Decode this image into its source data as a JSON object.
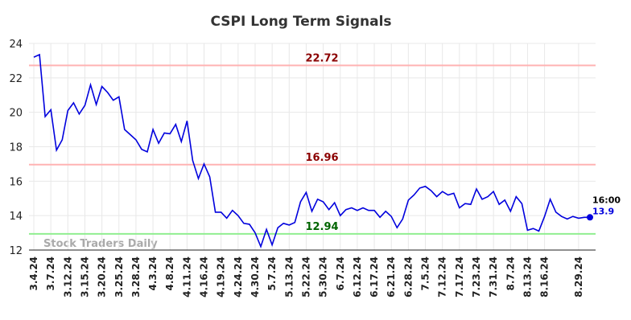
{
  "chart_data": {
    "type": "line",
    "title": "CSPI Long Term Signals",
    "watermark": "Stock Traders Daily",
    "last_label": "16:00",
    "categories": [
      "3.4.24",
      null,
      null,
      "3.7.24",
      null,
      null,
      "3.12.24",
      null,
      null,
      "3.15.24",
      null,
      null,
      "3.20.24",
      null,
      null,
      "3.25.24",
      null,
      null,
      "3.28.24",
      null,
      null,
      "4.3.24",
      null,
      null,
      "4.8.24",
      null,
      null,
      "4.11.24",
      null,
      null,
      "4.16.24",
      null,
      null,
      "4.19.24",
      null,
      null,
      "4.24.24",
      null,
      null,
      "4.30.24",
      null,
      null,
      "5.7.24",
      null,
      null,
      "5.13.24",
      null,
      null,
      "5.22.24",
      null,
      null,
      "5.30.24",
      null,
      null,
      "6.7.24",
      null,
      null,
      "6.12.24",
      null,
      null,
      "6.17.24",
      null,
      null,
      "6.21.24",
      null,
      null,
      "6.28.24",
      null,
      null,
      "7.5.24",
      null,
      null,
      "7.12.24",
      null,
      null,
      "7.17.24",
      null,
      null,
      "7.23.24",
      null,
      null,
      "7.31.24",
      null,
      null,
      "8.7.24",
      null,
      null,
      "8.13.24",
      null,
      null,
      "8.16.24",
      null,
      null,
      null,
      null,
      null,
      "8.29.24",
      null,
      null
    ],
    "values": [
      23.2,
      23.35,
      19.75,
      20.15,
      17.8,
      18.4,
      20.1,
      20.55,
      19.9,
      20.4,
      21.6,
      20.45,
      21.5,
      21.15,
      20.7,
      20.9,
      19.0,
      18.7,
      18.4,
      17.85,
      17.7,
      19.0,
      18.2,
      18.8,
      18.75,
      19.3,
      18.3,
      19.5,
      17.2,
      16.15,
      17.0,
      16.25,
      14.2,
      14.2,
      13.85,
      14.3,
      14.0,
      13.55,
      13.5,
      13.0,
      12.2,
      13.2,
      12.3,
      13.3,
      13.55,
      13.45,
      13.6,
      14.8,
      15.35,
      14.25,
      14.95,
      14.8,
      14.35,
      14.75,
      14.0,
      14.35,
      14.45,
      14.3,
      14.45,
      14.3,
      14.3,
      13.9,
      14.25,
      13.95,
      13.3,
      13.8,
      14.9,
      15.2,
      15.6,
      15.7,
      15.45,
      15.1,
      15.4,
      15.2,
      15.3,
      14.45,
      14.7,
      14.65,
      15.55,
      14.95,
      15.1,
      15.4,
      14.65,
      14.9,
      14.25,
      15.1,
      14.7,
      13.15,
      13.25,
      13.1,
      13.95,
      14.95,
      14.2,
      13.95,
      13.8,
      13.95,
      13.85,
      13.9,
      13.9
    ],
    "color": "#0000dd",
    "hlines": [
      {
        "value": 22.72,
        "line_color": "#ffb3b3",
        "label_color": "#8b0000"
      },
      {
        "value": 16.96,
        "line_color": "#ffb3b3",
        "label_color": "#8b0000"
      },
      {
        "value": 12.94,
        "line_color": "#90ee90",
        "label_color": "#006400"
      }
    ],
    "ylim": [
      12,
      24
    ],
    "yticks": [
      12,
      14,
      16,
      18,
      20,
      22,
      24
    ],
    "grid": true
  }
}
